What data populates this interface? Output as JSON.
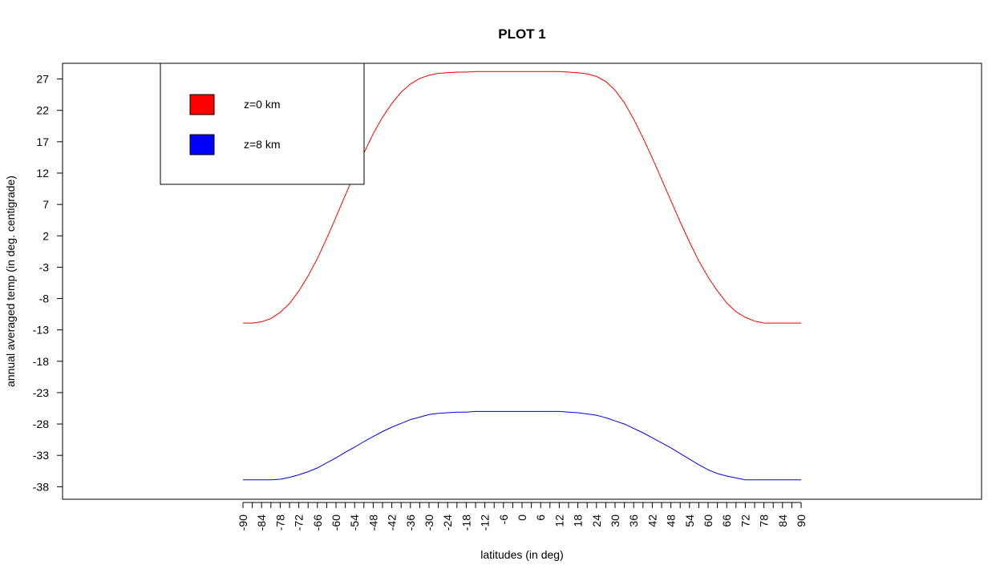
{
  "chart_data": {
    "type": "line",
    "title": "PLOT 1",
    "xlabel": "latitudes (in deg)",
    "ylabel": "annual averaged temp (in deg. centigrade)",
    "xlim": [
      -90,
      90
    ],
    "ylim": [
      -40,
      29.5
    ],
    "x_tick_labels": [
      "-90",
      "-84",
      "-78",
      "-72",
      "-66",
      "-60",
      "-54",
      "-48",
      "-42",
      "-36",
      "-30",
      "-24",
      "-18",
      "-12",
      "-6",
      "0",
      "6",
      "12",
      "18",
      "24",
      "30",
      "36",
      "42",
      "48",
      "54",
      "60",
      "66",
      "72",
      "78",
      "84",
      "90"
    ],
    "y_ticks": [
      -38,
      -33,
      -28,
      -23,
      -18,
      -13,
      -8,
      -3,
      2,
      7,
      12,
      17,
      22,
      27
    ],
    "legend_position": "top-left",
    "series": [
      {
        "name": "z=0 km",
        "color": "#ff0000",
        "x": [
          -90,
          -87,
          -84,
          -81,
          -78,
          -75,
          -72,
          -69,
          -66,
          -63,
          -60,
          -57,
          -54,
          -51,
          -48,
          -45,
          -42,
          -39,
          -36,
          -33,
          -30,
          -27,
          -24,
          -21,
          -18,
          -15,
          -12,
          -9,
          -6,
          -3,
          0,
          3,
          6,
          9,
          12,
          15,
          18,
          21,
          24,
          27,
          30,
          33,
          36,
          39,
          42,
          45,
          48,
          51,
          54,
          57,
          60,
          63,
          66,
          69,
          72,
          75,
          78,
          81,
          84,
          87,
          90
        ],
        "y": [
          -11.9,
          -11.9,
          -11.7,
          -11.2,
          -10.2,
          -8.8,
          -6.8,
          -4.4,
          -1.6,
          1.6,
          5.0,
          8.5,
          11.9,
          15.2,
          18.3,
          20.9,
          23.1,
          24.9,
          26.2,
          27.1,
          27.6,
          27.9,
          28.0,
          28.1,
          28.1,
          28.2,
          28.2,
          28.2,
          28.2,
          28.2,
          28.2,
          28.2,
          28.2,
          28.2,
          28.2,
          28.1,
          28.0,
          27.8,
          27.4,
          26.6,
          25.2,
          23.2,
          20.6,
          17.6,
          14.4,
          11.0,
          7.6,
          4.2,
          1.0,
          -2.0,
          -4.6,
          -6.8,
          -8.7,
          -10.1,
          -11.0,
          -11.6,
          -11.9,
          -11.9,
          -11.9,
          -11.9,
          -11.9
        ]
      },
      {
        "name": "z=8 km",
        "color": "#0000ff",
        "x": [
          -90,
          -87,
          -84,
          -81,
          -78,
          -75,
          -72,
          -69,
          -66,
          -63,
          -60,
          -57,
          -54,
          -51,
          -48,
          -45,
          -42,
          -39,
          -36,
          -33,
          -30,
          -27,
          -24,
          -21,
          -18,
          -15,
          -12,
          -9,
          -6,
          -3,
          0,
          3,
          6,
          9,
          12,
          15,
          18,
          21,
          24,
          27,
          30,
          33,
          36,
          39,
          42,
          45,
          48,
          51,
          54,
          57,
          60,
          63,
          66,
          69,
          72,
          75,
          78,
          81,
          84,
          87,
          90
        ],
        "y": [
          -36.9,
          -36.9,
          -36.9,
          -36.9,
          -36.8,
          -36.5,
          -36.1,
          -35.6,
          -35.0,
          -34.2,
          -33.4,
          -32.5,
          -31.7,
          -30.8,
          -30.0,
          -29.2,
          -28.5,
          -27.9,
          -27.3,
          -26.9,
          -26.5,
          -26.3,
          -26.2,
          -26.1,
          -26.1,
          -26.0,
          -26.0,
          -26.0,
          -26.0,
          -26.0,
          -26.0,
          -26.0,
          -26.0,
          -26.0,
          -26.0,
          -26.1,
          -26.2,
          -26.4,
          -26.6,
          -27.0,
          -27.5,
          -28.0,
          -28.7,
          -29.4,
          -30.2,
          -31.0,
          -31.8,
          -32.7,
          -33.6,
          -34.5,
          -35.3,
          -35.9,
          -36.3,
          -36.6,
          -36.9,
          -36.9,
          -36.9,
          -36.9,
          -36.9,
          -36.9,
          -36.9
        ]
      }
    ]
  }
}
